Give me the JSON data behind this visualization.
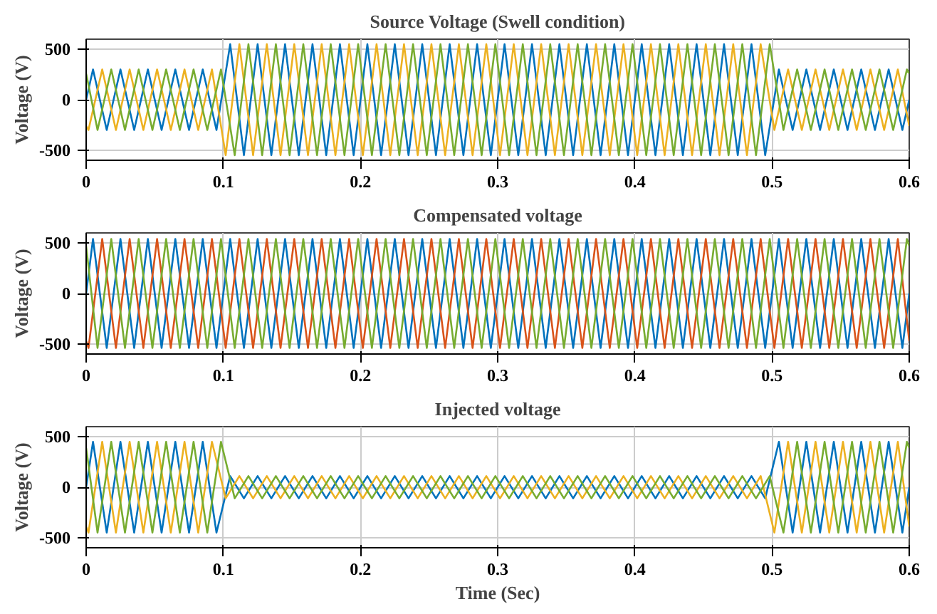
{
  "chart_data": [
    {
      "type": "line",
      "title": "Source Voltage (Swell condition)",
      "ylabel": "Voltage (V)",
      "xlim": [
        0,
        0.6
      ],
      "xticks": [
        0,
        0.1,
        0.2,
        0.3,
        0.4,
        0.5,
        0.6
      ],
      "ylim": [
        -600,
        600
      ],
      "yticks": [
        -500,
        0,
        500
      ],
      "grid": true,
      "series": [
        {
          "color": "#0072bd",
          "x": [
            0,
            0.005,
            0.015,
            0.025,
            0.035,
            0.045,
            0.055,
            0.065,
            0.075,
            0.085,
            0.095,
            0.105,
            0.115,
            0.125,
            0.135,
            0.145,
            0.155,
            0.165,
            0.175,
            0.185,
            0.195,
            0.205,
            0.215,
            0.225,
            0.235,
            0.245,
            0.255,
            0.265,
            0.275,
            0.285,
            0.295,
            0.305,
            0.315,
            0.325,
            0.335,
            0.345,
            0.355,
            0.365,
            0.375,
            0.385,
            0.395,
            0.405,
            0.415,
            0.425,
            0.435,
            0.445,
            0.455,
            0.465,
            0.475,
            0.485,
            0.495,
            0.505,
            0.515,
            0.525,
            0.535,
            0.545,
            0.555,
            0.565,
            0.575,
            0.585,
            0.595,
            0.6
          ],
          "values": [
            0,
            300,
            -300,
            300,
            -300,
            300,
            -300,
            300,
            -300,
            300,
            -300,
            550,
            -550,
            550,
            -550,
            550,
            -550,
            550,
            -550,
            550,
            -550,
            550,
            -550,
            550,
            -550,
            550,
            -550,
            550,
            -550,
            550,
            -550,
            550,
            -550,
            550,
            -550,
            550,
            -550,
            550,
            -550,
            550,
            -550,
            550,
            -550,
            550,
            -550,
            550,
            -550,
            550,
            -550,
            550,
            -550,
            300,
            -300,
            300,
            -300,
            300,
            -300,
            300,
            -300,
            300,
            -300,
            0
          ]
        },
        {
          "color": "#edb120",
          "x": [
            0,
            0.0017,
            0.0117,
            0.0217,
            0.0317,
            0.0417,
            0.0517,
            0.0617,
            0.0717,
            0.0817,
            0.0917,
            0.1017,
            0.1117,
            0.1217,
            0.1317,
            0.1417,
            0.1517,
            0.1617,
            0.1717,
            0.1817,
            0.1917,
            0.2017,
            0.2117,
            0.2217,
            0.2317,
            0.2417,
            0.2517,
            0.2617,
            0.2717,
            0.2817,
            0.2917,
            0.3017,
            0.3117,
            0.3217,
            0.3317,
            0.3417,
            0.3517,
            0.3617,
            0.3717,
            0.3817,
            0.3917,
            0.4017,
            0.4117,
            0.4217,
            0.4317,
            0.4417,
            0.4517,
            0.4617,
            0.4717,
            0.4817,
            0.4917,
            0.5017,
            0.5117,
            0.5217,
            0.5317,
            0.5417,
            0.5517,
            0.5617,
            0.5717,
            0.5817,
            0.5917,
            0.6
          ],
          "values": [
            -260,
            -300,
            300,
            -300,
            300,
            -300,
            300,
            -300,
            300,
            -300,
            300,
            -550,
            550,
            -550,
            550,
            -550,
            550,
            -550,
            550,
            -550,
            550,
            -550,
            550,
            -550,
            550,
            -550,
            550,
            -550,
            550,
            -550,
            550,
            -550,
            550,
            -550,
            550,
            -550,
            550,
            -550,
            550,
            -550,
            550,
            -550,
            550,
            -550,
            550,
            -550,
            550,
            -550,
            550,
            -550,
            550,
            -300,
            300,
            -300,
            300,
            -300,
            300,
            -300,
            300,
            -300,
            300,
            -260
          ]
        },
        {
          "color": "#77ac30",
          "x": [
            0,
            0.0083,
            0.0183,
            0.0283,
            0.0383,
            0.0483,
            0.0583,
            0.0683,
            0.0783,
            0.0883,
            0.0983,
            0.1083,
            0.1183,
            0.1283,
            0.1383,
            0.1483,
            0.1583,
            0.1683,
            0.1783,
            0.1883,
            0.1983,
            0.2083,
            0.2183,
            0.2283,
            0.2383,
            0.2483,
            0.2583,
            0.2683,
            0.2783,
            0.2883,
            0.2983,
            0.3083,
            0.3183,
            0.3283,
            0.3383,
            0.3483,
            0.3583,
            0.3683,
            0.3783,
            0.3883,
            0.3983,
            0.4083,
            0.4183,
            0.4283,
            0.4383,
            0.4483,
            0.4583,
            0.4683,
            0.4783,
            0.4883,
            0.4983,
            0.5083,
            0.5183,
            0.5283,
            0.5383,
            0.5483,
            0.5583,
            0.5683,
            0.5783,
            0.5883,
            0.5983,
            0.6
          ],
          "values": [
            260,
            -300,
            300,
            -300,
            300,
            -300,
            300,
            -300,
            300,
            -300,
            300,
            -550,
            550,
            -550,
            550,
            -550,
            550,
            -550,
            550,
            -550,
            550,
            -550,
            550,
            -550,
            550,
            -550,
            550,
            -550,
            550,
            -550,
            550,
            -550,
            550,
            -550,
            550,
            -550,
            550,
            -550,
            550,
            -550,
            550,
            -550,
            550,
            -550,
            550,
            -550,
            550,
            -550,
            550,
            -550,
            550,
            -300,
            300,
            -300,
            300,
            -300,
            300,
            -300,
            300,
            -300,
            300,
            260
          ]
        }
      ]
    },
    {
      "type": "line",
      "title": "Compensated voltage",
      "ylabel": "Voltage (V)",
      "xlim": [
        0,
        0.6
      ],
      "xticks": [
        0,
        0.1,
        0.2,
        0.3,
        0.4,
        0.5,
        0.6
      ],
      "ylim": [
        -600,
        600
      ],
      "yticks": [
        -500,
        0,
        500
      ],
      "grid": true,
      "series": [
        {
          "color": "#0072bd",
          "x": [
            0,
            0.005,
            0.015,
            0.025,
            0.035,
            0.045,
            0.055,
            0.065,
            0.075,
            0.085,
            0.095,
            0.105,
            0.115,
            0.125,
            0.135,
            0.145,
            0.155,
            0.165,
            0.175,
            0.185,
            0.195,
            0.205,
            0.215,
            0.225,
            0.235,
            0.245,
            0.255,
            0.265,
            0.275,
            0.285,
            0.295,
            0.305,
            0.315,
            0.325,
            0.335,
            0.345,
            0.355,
            0.365,
            0.375,
            0.385,
            0.395,
            0.405,
            0.415,
            0.425,
            0.435,
            0.445,
            0.455,
            0.465,
            0.475,
            0.485,
            0.495,
            0.505,
            0.515,
            0.525,
            0.535,
            0.545,
            0.555,
            0.565,
            0.575,
            0.585,
            0.595,
            0.6
          ],
          "values": [
            0,
            540,
            -540,
            540,
            -540,
            540,
            -540,
            540,
            -540,
            540,
            -540,
            540,
            -540,
            540,
            -540,
            540,
            -540,
            540,
            -540,
            540,
            -540,
            540,
            -540,
            540,
            -540,
            540,
            -540,
            540,
            -540,
            540,
            -540,
            540,
            -540,
            540,
            -540,
            540,
            -540,
            540,
            -540,
            540,
            -540,
            540,
            -540,
            540,
            -540,
            540,
            -540,
            540,
            -540,
            540,
            -540,
            540,
            -540,
            540,
            -540,
            540,
            -540,
            540,
            -540,
            540,
            -540,
            0
          ]
        },
        {
          "color": "#d95319",
          "x": [
            0,
            0.0017,
            0.0117,
            0.0217,
            0.0317,
            0.0417,
            0.0517,
            0.0617,
            0.0717,
            0.0817,
            0.0917,
            0.1017,
            0.1117,
            0.1217,
            0.1317,
            0.1417,
            0.1517,
            0.1617,
            0.1717,
            0.1817,
            0.1917,
            0.2017,
            0.2117,
            0.2217,
            0.2317,
            0.2417,
            0.2517,
            0.2617,
            0.2717,
            0.2817,
            0.2917,
            0.3017,
            0.3117,
            0.3217,
            0.3317,
            0.3417,
            0.3517,
            0.3617,
            0.3717,
            0.3817,
            0.3917,
            0.4017,
            0.4117,
            0.4217,
            0.4317,
            0.4417,
            0.4517,
            0.4617,
            0.4717,
            0.4817,
            0.4917,
            0.5017,
            0.5117,
            0.5217,
            0.5317,
            0.5417,
            0.5517,
            0.5617,
            0.5717,
            0.5817,
            0.5917,
            0.6
          ],
          "values": [
            -470,
            -540,
            540,
            -540,
            540,
            -540,
            540,
            -540,
            540,
            -540,
            540,
            -540,
            540,
            -540,
            540,
            -540,
            540,
            -540,
            540,
            -540,
            540,
            -540,
            540,
            -540,
            540,
            -540,
            540,
            -540,
            540,
            -540,
            540,
            -540,
            540,
            -540,
            540,
            -540,
            540,
            -540,
            540,
            -540,
            540,
            -540,
            540,
            -540,
            540,
            -540,
            540,
            -540,
            540,
            -540,
            540,
            -540,
            540,
            -540,
            540,
            -540,
            540,
            -540,
            540,
            -540,
            540,
            -470
          ]
        },
        {
          "color": "#77ac30",
          "x": [
            0,
            0.0083,
            0.0183,
            0.0283,
            0.0383,
            0.0483,
            0.0583,
            0.0683,
            0.0783,
            0.0883,
            0.0983,
            0.1083,
            0.1183,
            0.1283,
            0.1383,
            0.1483,
            0.1583,
            0.1683,
            0.1783,
            0.1883,
            0.1983,
            0.2083,
            0.2183,
            0.2283,
            0.2383,
            0.2483,
            0.2583,
            0.2683,
            0.2783,
            0.2883,
            0.2983,
            0.3083,
            0.3183,
            0.3283,
            0.3383,
            0.3483,
            0.3583,
            0.3683,
            0.3783,
            0.3883,
            0.3983,
            0.4083,
            0.4183,
            0.4283,
            0.4383,
            0.4483,
            0.4583,
            0.4683,
            0.4783,
            0.4883,
            0.4983,
            0.5083,
            0.5183,
            0.5283,
            0.5383,
            0.5483,
            0.5583,
            0.5683,
            0.5783,
            0.5883,
            0.5983,
            0.6
          ],
          "values": [
            470,
            -540,
            540,
            -540,
            540,
            -540,
            540,
            -540,
            540,
            -540,
            540,
            -540,
            540,
            -540,
            540,
            -540,
            540,
            -540,
            540,
            -540,
            540,
            -540,
            540,
            -540,
            540,
            -540,
            540,
            -540,
            540,
            -540,
            540,
            -540,
            540,
            -540,
            540,
            -540,
            540,
            -540,
            540,
            -540,
            540,
            -540,
            540,
            -540,
            540,
            -540,
            540,
            -540,
            540,
            -540,
            540,
            -540,
            540,
            -540,
            540,
            -540,
            540,
            -540,
            540,
            -540,
            540,
            470
          ]
        }
      ]
    },
    {
      "type": "line",
      "title": "Injected voltage",
      "ylabel": "Voltage (V)",
      "xlabel": "Time (Sec)",
      "xlim": [
        0,
        0.6
      ],
      "xticks": [
        0,
        0.1,
        0.2,
        0.3,
        0.4,
        0.5,
        0.6
      ],
      "ylim": [
        -600,
        600
      ],
      "yticks": [
        -500,
        0,
        500
      ],
      "grid": true,
      "series": [
        {
          "color": "#0072bd",
          "x": [
            0,
            0.005,
            0.015,
            0.025,
            0.035,
            0.045,
            0.055,
            0.065,
            0.075,
            0.085,
            0.095,
            0.105,
            0.115,
            0.125,
            0.135,
            0.145,
            0.155,
            0.165,
            0.175,
            0.185,
            0.195,
            0.205,
            0.215,
            0.225,
            0.235,
            0.245,
            0.255,
            0.265,
            0.275,
            0.285,
            0.295,
            0.305,
            0.315,
            0.325,
            0.335,
            0.345,
            0.355,
            0.365,
            0.375,
            0.385,
            0.395,
            0.405,
            0.415,
            0.425,
            0.435,
            0.445,
            0.455,
            0.465,
            0.475,
            0.485,
            0.495,
            0.505,
            0.515,
            0.525,
            0.535,
            0.545,
            0.555,
            0.565,
            0.575,
            0.585,
            0.595,
            0.6
          ],
          "values": [
            0,
            450,
            -450,
            450,
            -450,
            450,
            -450,
            450,
            -450,
            450,
            -450,
            110,
            -110,
            110,
            -110,
            110,
            -110,
            110,
            -110,
            110,
            -110,
            110,
            -110,
            110,
            -110,
            110,
            -110,
            110,
            -110,
            110,
            -110,
            110,
            -110,
            110,
            -110,
            110,
            -110,
            110,
            -110,
            110,
            -110,
            110,
            -110,
            110,
            -110,
            110,
            -110,
            110,
            -110,
            110,
            -110,
            450,
            -450,
            450,
            -450,
            450,
            -450,
            450,
            -450,
            450,
            -450,
            0
          ]
        },
        {
          "color": "#edb120",
          "x": [
            0,
            0.0017,
            0.0117,
            0.0217,
            0.0317,
            0.0417,
            0.0517,
            0.0617,
            0.0717,
            0.0817,
            0.0917,
            0.1017,
            0.1117,
            0.1217,
            0.1317,
            0.1417,
            0.1517,
            0.1617,
            0.1717,
            0.1817,
            0.1917,
            0.2017,
            0.2117,
            0.2217,
            0.2317,
            0.2417,
            0.2517,
            0.2617,
            0.2717,
            0.2817,
            0.2917,
            0.3017,
            0.3117,
            0.3217,
            0.3317,
            0.3417,
            0.3517,
            0.3617,
            0.3717,
            0.3817,
            0.3917,
            0.4017,
            0.4117,
            0.4217,
            0.4317,
            0.4417,
            0.4517,
            0.4617,
            0.4717,
            0.4817,
            0.4917,
            0.5017,
            0.5117,
            0.5217,
            0.5317,
            0.5417,
            0.5517,
            0.5617,
            0.5717,
            0.5817,
            0.5917,
            0.6
          ],
          "values": [
            -390,
            -450,
            450,
            -450,
            450,
            -450,
            450,
            -450,
            450,
            -450,
            450,
            -110,
            110,
            -110,
            110,
            -110,
            110,
            -110,
            110,
            -110,
            110,
            -110,
            110,
            -110,
            110,
            -110,
            110,
            -110,
            110,
            -110,
            110,
            -110,
            110,
            -110,
            110,
            -110,
            110,
            -110,
            110,
            -110,
            110,
            -110,
            110,
            -110,
            110,
            -110,
            110,
            -110,
            110,
            -110,
            110,
            -450,
            450,
            -450,
            450,
            -450,
            450,
            -450,
            450,
            -450,
            450,
            -390
          ]
        },
        {
          "color": "#77ac30",
          "x": [
            0,
            0.0083,
            0.0183,
            0.0283,
            0.0383,
            0.0483,
            0.0583,
            0.0683,
            0.0783,
            0.0883,
            0.0983,
            0.1083,
            0.1183,
            0.1283,
            0.1383,
            0.1483,
            0.1583,
            0.1683,
            0.1783,
            0.1883,
            0.1983,
            0.2083,
            0.2183,
            0.2283,
            0.2383,
            0.2483,
            0.2583,
            0.2683,
            0.2783,
            0.2883,
            0.2983,
            0.3083,
            0.3183,
            0.3283,
            0.3383,
            0.3483,
            0.3583,
            0.3683,
            0.3783,
            0.3883,
            0.3983,
            0.4083,
            0.4183,
            0.4283,
            0.4383,
            0.4483,
            0.4583,
            0.4683,
            0.4783,
            0.4883,
            0.4983,
            0.5083,
            0.5183,
            0.5283,
            0.5383,
            0.5483,
            0.5583,
            0.5683,
            0.5783,
            0.5883,
            0.5983,
            0.6
          ],
          "values": [
            390,
            -450,
            450,
            -450,
            450,
            -450,
            450,
            -450,
            450,
            -450,
            450,
            -110,
            110,
            -110,
            110,
            -110,
            110,
            -110,
            110,
            -110,
            110,
            -110,
            110,
            -110,
            110,
            -110,
            110,
            -110,
            110,
            -110,
            110,
            -110,
            110,
            -110,
            110,
            -110,
            110,
            -110,
            110,
            -110,
            110,
            -110,
            110,
            -110,
            110,
            -110,
            110,
            -110,
            110,
            -110,
            110,
            -450,
            450,
            -450,
            450,
            -450,
            450,
            -450,
            450,
            -450,
            450,
            390
          ]
        }
      ]
    }
  ]
}
